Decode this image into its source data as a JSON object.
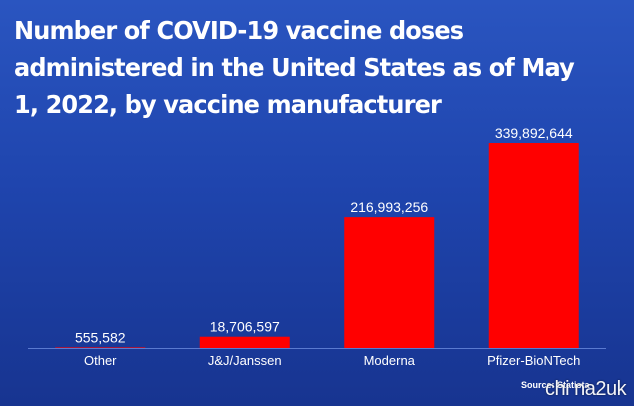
{
  "chart_data": {
    "type": "bar",
    "title": "Number of COVID-19 vaccine doses administered in the United States as of May 1, 2022, by vaccine manufacturer",
    "categories": [
      "Other",
      "J&J/Janssen",
      "Moderna",
      "Pfizer-BioNTech"
    ],
    "values": [
      555582,
      18706597,
      216993256,
      339892644
    ],
    "value_labels": [
      "555,582",
      "18,706,597",
      "216,993,256",
      "339,892,644"
    ],
    "xlabel": "",
    "ylabel": "",
    "ylim": [
      0,
      339892644
    ],
    "grid": false,
    "legend": "none",
    "bar_color": "#ff0000",
    "axis_color": "#5a7ad0"
  },
  "source": "Source: Statista",
  "watermark": "chi na2uk"
}
